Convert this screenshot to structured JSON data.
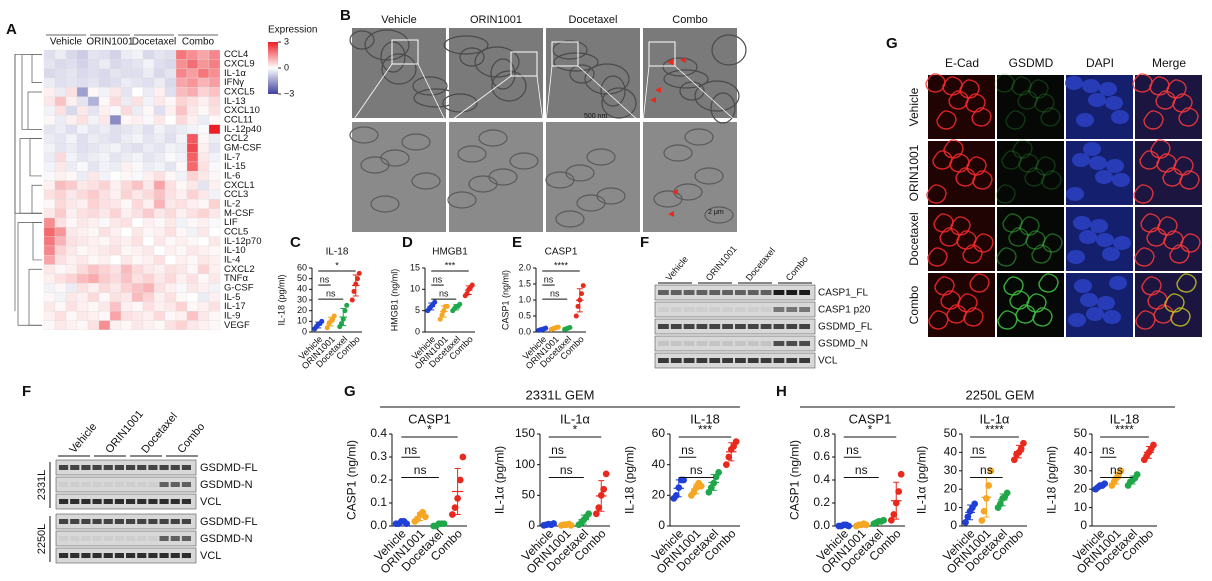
{
  "groups": [
    "Vehicle",
    "ORIN1001",
    "Docetaxel",
    "Combo"
  ],
  "group_colors": [
    "#1f3fd6",
    "#f5a623",
    "#1fa84a",
    "#e8291c"
  ],
  "A": {
    "letter": "A",
    "rows": [
      "CCL4",
      "CXCL9",
      "IL-1α",
      "IFNγ",
      "CXCL5",
      "IL-13",
      "CXCL10",
      "CCL11",
      "IL-12p40",
      "CCL2",
      "GM-CSF",
      "IL-7",
      "IL-15",
      "IL-6",
      "CXCL1",
      "CCL3",
      "IL-2",
      "M-CSF",
      "LIF",
      "CCL5",
      "IL-12p70",
      "IL-10",
      "IL-4",
      "CXCL2",
      "TNFα",
      "G-CSF",
      "IL-5",
      "IL-17",
      "IL-9",
      "VEGF"
    ],
    "values": [
      [
        -0.5,
        -0.3,
        -0.6,
        -0.8,
        -0.4,
        -0.5,
        -0.7,
        -0.3,
        -0.2,
        -0.6,
        -0.4,
        -0.5,
        1.8,
        1.5,
        1.2,
        1.6
      ],
      [
        -0.4,
        -0.6,
        -0.5,
        -0.7,
        -0.5,
        -0.3,
        -0.6,
        -0.5,
        -0.4,
        -0.2,
        -0.5,
        -0.6,
        1.5,
        1.9,
        1.4,
        1.7
      ],
      [
        -0.6,
        -0.5,
        -0.4,
        -0.6,
        -0.5,
        -0.6,
        -0.4,
        -0.5,
        -0.5,
        -0.3,
        -0.6,
        -0.4,
        1.6,
        1.3,
        1.8,
        1.5
      ],
      [
        -0.3,
        -0.5,
        -0.4,
        -0.5,
        -0.4,
        -0.6,
        -0.5,
        -0.3,
        -0.4,
        -0.5,
        -0.3,
        -0.6,
        1.2,
        1.4,
        1.0,
        1.3
      ],
      [
        0.2,
        -0.3,
        0.4,
        -1.5,
        0.1,
        -0.2,
        0.3,
        -0.4,
        0.0,
        -0.3,
        0.2,
        -0.5,
        0.9,
        1.1,
        0.6,
        0.8
      ],
      [
        0.3,
        0.8,
        0.2,
        -0.4,
        -1.2,
        0.1,
        0.5,
        -0.3,
        0.4,
        -0.2,
        0.3,
        0.1,
        0.6,
        0.4,
        0.2,
        0.5
      ],
      [
        -0.2,
        0.4,
        -0.6,
        0.3,
        -0.4,
        0.2,
        -0.1,
        0.5,
        -0.3,
        0.1,
        -0.5,
        0.2,
        0.8,
        0.3,
        0.1,
        0.4
      ],
      [
        0.1,
        -0.3,
        0.2,
        0.4,
        -0.2,
        0.3,
        -1.8,
        0.1,
        0.2,
        -0.1,
        0.3,
        0.0,
        0.5,
        0.2,
        -0.3,
        0.1
      ],
      [
        -0.4,
        -0.3,
        -0.5,
        -0.2,
        -0.4,
        -0.3,
        -0.5,
        -0.4,
        -0.3,
        -0.5,
        -0.2,
        -0.4,
        -0.3,
        -0.2,
        -0.1,
        3.0
      ],
      [
        -0.3,
        -0.4,
        -0.2,
        -0.5,
        -0.3,
        -0.4,
        -0.5,
        -0.3,
        -0.2,
        -0.4,
        -0.3,
        -0.5,
        -0.2,
        2.2,
        0.1,
        -0.3
      ],
      [
        -0.2,
        -0.4,
        -0.3,
        -0.5,
        -0.4,
        -0.3,
        -0.2,
        -0.4,
        -0.5,
        -0.3,
        -0.4,
        -0.2,
        -0.3,
        2.4,
        0.2,
        -0.4
      ],
      [
        -0.3,
        0.5,
        -0.2,
        -0.4,
        -0.3,
        -0.2,
        -0.4,
        -0.3,
        -0.2,
        -0.4,
        -0.3,
        -0.1,
        -0.2,
        2.1,
        0.3,
        -0.2
      ],
      [
        -0.2,
        0.3,
        -0.3,
        -0.1,
        -0.4,
        -0.2,
        -0.3,
        0.2,
        -0.1,
        -0.3,
        -0.2,
        -0.4,
        0.1,
        2.0,
        0.4,
        -0.1
      ],
      [
        -0.1,
        0.2,
        0.1,
        -0.3,
        0.3,
        -0.2,
        0.0,
        0.1,
        -0.1,
        0.2,
        0.4,
        0.1,
        -0.2,
        0.6,
        0.3,
        0.1
      ],
      [
        0.2,
        0.9,
        0.7,
        0.3,
        0.4,
        0.6,
        0.2,
        0.5,
        0.8,
        0.3,
        1.2,
        0.4,
        0.1,
        0.3,
        -0.4,
        0.2
      ],
      [
        0.4,
        0.6,
        0.3,
        0.5,
        0.7,
        0.4,
        0.2,
        0.6,
        0.3,
        0.5,
        0.8,
        0.4,
        0.2,
        0.6,
        0.3,
        -0.2
      ],
      [
        0.1,
        0.5,
        0.3,
        0.2,
        0.6,
        0.4,
        0.3,
        0.1,
        0.5,
        0.2,
        1.0,
        0.3,
        0.4,
        0.2,
        0.1,
        0.6
      ],
      [
        0.3,
        0.7,
        0.2,
        0.4,
        0.5,
        0.3,
        0.6,
        0.2,
        0.4,
        0.7,
        0.3,
        0.5,
        0.2,
        0.4,
        0.6,
        0.3
      ],
      [
        1.5,
        0.4,
        0.1,
        0.3,
        0.2,
        -0.1,
        0.3,
        0.4,
        0.0,
        0.2,
        0.1,
        0.3,
        -0.2,
        0.1,
        0.2,
        -0.1
      ],
      [
        2.0,
        1.4,
        0.3,
        0.2,
        0.1,
        0.4,
        0.2,
        0.0,
        0.3,
        0.1,
        0.2,
        0.4,
        0.1,
        -0.2,
        0.3,
        0.0
      ],
      [
        1.8,
        1.0,
        0.4,
        0.3,
        0.2,
        0.1,
        0.3,
        0.2,
        0.4,
        0.0,
        0.3,
        0.1,
        0.2,
        0.1,
        0.0,
        0.3
      ],
      [
        1.6,
        0.6,
        0.3,
        0.1,
        0.2,
        0.3,
        0.4,
        0.1,
        0.2,
        0.3,
        0.0,
        0.2,
        0.1,
        0.3,
        0.2,
        0.1
      ],
      [
        1.2,
        0.4,
        0.2,
        0.3,
        0.1,
        0.2,
        0.0,
        0.3,
        0.1,
        0.2,
        0.4,
        0.0,
        0.2,
        0.1,
        0.3,
        0.2
      ],
      [
        0.3,
        0.1,
        0.2,
        0.5,
        0.8,
        0.6,
        0.4,
        0.9,
        0.5,
        0.3,
        0.2,
        0.4,
        0.3,
        0.1,
        0.6,
        0.2
      ],
      [
        0.2,
        0.4,
        0.6,
        0.9,
        1.1,
        0.7,
        0.5,
        0.8,
        0.4,
        0.6,
        0.3,
        0.5,
        0.2,
        0.4,
        0.1,
        0.3
      ],
      [
        -0.2,
        0.1,
        -0.3,
        0.4,
        0.2,
        0.5,
        0.3,
        0.6,
        0.8,
        1.0,
        0.4,
        0.2,
        -0.1,
        0.3,
        0.2,
        -0.2
      ],
      [
        0.1,
        -0.2,
        0.3,
        0.2,
        0.5,
        0.1,
        0.4,
        0.3,
        0.9,
        0.6,
        0.2,
        0.4,
        0.1,
        0.0,
        -0.3,
        0.2
      ],
      [
        0.3,
        0.1,
        0.4,
        0.2,
        0.1,
        0.3,
        0.8,
        0.2,
        0.1,
        0.4,
        0.2,
        0.3,
        0.6,
        0.1,
        0.2,
        0.4
      ],
      [
        0.2,
        0.4,
        0.1,
        0.3,
        0.2,
        0.1,
        1.2,
        0.4,
        0.3,
        0.2,
        0.5,
        0.1,
        0.2,
        0.8,
        0.3,
        0.1
      ],
      [
        0.1,
        0.3,
        0.2,
        0.1,
        0.4,
        1.5,
        0.2,
        0.1,
        0.3,
        0.2,
        0.1,
        0.4,
        0.6,
        0.3,
        0.2,
        0.1
      ]
    ],
    "scale": {
      "title": "Expression",
      "lim": [
        -3,
        3
      ],
      "ticks": [
        3,
        0,
        {
          "value": -3,
          "label": "−3"
        }
      ],
      "low_color": "#3f3f9f",
      "high_color": "#ee1c25"
    }
  },
  "B": {
    "letter": "B",
    "scale_top": "500 nm",
    "scale_bottom": "2 μm"
  },
  "C": {
    "letter": "C",
    "title": "IL-18",
    "ylabel": "IL-18 (pg/ml)",
    "ylim": [
      0,
      60
    ],
    "yticks": [
      0,
      10,
      20,
      30,
      40,
      50,
      60
    ],
    "points": [
      [
        3,
        5,
        7,
        8,
        10
      ],
      [
        4,
        8,
        10,
        12,
        15
      ],
      [
        5,
        8,
        12,
        20,
        25
      ],
      [
        30,
        38,
        45,
        50,
        55
      ]
    ],
    "mean": [
      6.6,
      9.8,
      14,
      43.6
    ],
    "sd": [
      2.7,
      4,
      8,
      9.8
    ],
    "sig": [
      {
        "label": "*",
        "between": [
          0,
          3
        ]
      },
      {
        "label": "ns",
        "between": [
          0,
          1
        ]
      },
      {
        "label": "ns",
        "between": [
          0,
          2
        ]
      }
    ]
  },
  "D": {
    "letter": "D",
    "title": "HMGB1",
    "ylabel": "HMGB1 (ng/ml)",
    "ylim": [
      0,
      15
    ],
    "yticks": [
      0,
      5,
      10,
      15
    ],
    "points": [
      [
        5,
        5.5,
        6,
        6.5,
        7
      ],
      [
        3,
        4,
        5,
        6,
        6
      ],
      [
        5,
        5.5,
        6,
        6,
        6.5
      ],
      [
        8.5,
        9,
        10,
        10.5,
        11
      ]
    ],
    "mean": [
      6,
      4.8,
      5.8,
      9.8
    ],
    "sd": [
      0.8,
      1.3,
      0.6,
      1.0
    ],
    "sig": [
      {
        "label": "***",
        "between": [
          0,
          3
        ]
      },
      {
        "label": "ns",
        "between": [
          0,
          1
        ]
      },
      {
        "label": "ns",
        "between": [
          0,
          2
        ]
      }
    ]
  },
  "E": {
    "letter": "E",
    "title": "CASP1",
    "ylabel": "CASP1 (ng/ml)",
    "ylim": [
      0,
      2
    ],
    "yticks": [
      {
        "value": 0,
        "label": "0.0"
      },
      0.5,
      {
        "value": 1,
        "label": "1.0"
      },
      1.5,
      {
        "value": 2,
        "label": "2.0"
      }
    ],
    "points": [
      [
        0.05,
        0.07,
        0.08,
        0.1,
        0.12
      ],
      [
        0.08,
        0.1,
        0.12,
        0.14,
        0.15
      ],
      [
        0.08,
        0.1,
        0.12,
        0.14
      ],
      [
        0.5,
        0.8,
        1.0,
        1.2,
        1.45
      ]
    ],
    "mean": [
      0.08,
      0.12,
      0.11,
      0.99
    ],
    "sd": [
      0.03,
      0.03,
      0.03,
      0.36
    ],
    "sig": [
      {
        "label": "****",
        "between": [
          0,
          3
        ]
      },
      {
        "label": "ns",
        "between": [
          0,
          1
        ]
      },
      {
        "label": "ns",
        "between": [
          0,
          2
        ]
      }
    ]
  },
  "F_top": {
    "letter": "F",
    "bands": [
      "CASP1_FL",
      "CASP1 p20",
      "GSDMD_FL",
      "GSDMD_N",
      "VCL"
    ]
  },
  "G_top": {
    "letter": "G",
    "channels": [
      "E-Cad",
      "GSDMD",
      "DAPI",
      "Merge"
    ]
  },
  "F_bottom": {
    "letter": "F",
    "cell_lines": [
      "2331L",
      "2250L"
    ],
    "bands": [
      "GSDMD-FL",
      "GSDMD-N",
      "VCL"
    ]
  },
  "G_bottom": {
    "letter": "G",
    "title": "2331L GEM",
    "plots": [
      {
        "title": "CASP1",
        "ylabel": "CASP1 (ng/ml)",
        "ylim": [
          0,
          0.4
        ],
        "yticks": [
          {
            "value": 0,
            "label": "0.0"
          },
          0.1,
          0.2,
          0.3,
          0.4
        ],
        "points": [
          [
            0.01,
            0.01,
            0.02,
            0.02,
            0.01
          ],
          [
            0.02,
            0.03,
            0.05,
            0.06,
            0.04
          ],
          [
            0,
            0,
            0.01,
            0.01,
            0.01
          ],
          [
            0.05,
            0.08,
            0.12,
            0.2,
            0.3
          ]
        ],
        "mean": [
          0.014,
          0.04,
          0.006,
          0.15
        ],
        "sd": [
          0.005,
          0.016,
          0.005,
          0.1
        ],
        "sig": [
          {
            "label": "*",
            "between": [
              0,
              3
            ]
          },
          {
            "label": "ns",
            "between": [
              0,
              1
            ]
          },
          {
            "label": "ns",
            "between": [
              0,
              2
            ]
          }
        ]
      },
      {
        "title": "IL-1α",
        "ylabel": "IL-1α (pg/ml)",
        "ylim": [
          0,
          150
        ],
        "yticks": [
          0,
          50,
          100,
          150
        ],
        "points": [
          [
            1,
            2,
            3,
            2,
            4
          ],
          [
            1,
            2,
            2,
            3,
            1
          ],
          [
            2,
            5,
            10,
            15,
            20
          ],
          [
            20,
            30,
            50,
            60,
            85
          ]
        ],
        "mean": [
          2.4,
          1.8,
          10.4,
          49
        ],
        "sd": [
          1.1,
          0.8,
          7.3,
          25
        ],
        "sig": [
          {
            "label": "*",
            "between": [
              0,
              3
            ]
          },
          {
            "label": "ns",
            "between": [
              0,
              1
            ]
          },
          {
            "label": "ns",
            "between": [
              0,
              2
            ]
          }
        ]
      },
      {
        "title": "IL-18",
        "ylabel": "IL-18 (pg/ml)",
        "ylim": [
          0,
          60
        ],
        "yticks": [
          0,
          20,
          40,
          60
        ],
        "points": [
          [
            18,
            20,
            25,
            30,
            30
          ],
          [
            20,
            22,
            25,
            28,
            26
          ],
          [
            22,
            25,
            28,
            32,
            35
          ],
          [
            40,
            45,
            50,
            52,
            55
          ]
        ],
        "mean": [
          24.6,
          24.2,
          28.4,
          48.4
        ],
        "sd": [
          5.5,
          3.2,
          5.2,
          5.9
        ],
        "sig": [
          {
            "label": "***",
            "between": [
              0,
              3
            ]
          },
          {
            "label": "ns",
            "between": [
              0,
              1
            ]
          },
          {
            "label": "ns",
            "between": [
              0,
              2
            ]
          }
        ]
      }
    ]
  },
  "H": {
    "letter": "H",
    "title": "2250L GEM",
    "plots": [
      {
        "title": "CASP1",
        "ylabel": "CASP1 (ng/ml)",
        "ylim": [
          0,
          0.8
        ],
        "yticks": [
          {
            "value": 0,
            "label": "0.0"
          },
          0.2,
          0.4,
          0.6,
          0.8
        ],
        "points": [
          [
            0,
            0,
            0.01,
            0.01,
            0
          ],
          [
            0,
            0.01,
            0.01,
            0.02,
            0.01
          ],
          [
            0.02,
            0.03,
            0.04,
            0.04,
            0.05
          ],
          [
            0.05,
            0.1,
            0.2,
            0.3,
            0.45
          ]
        ],
        "mean": [
          0.004,
          0.01,
          0.036,
          0.22
        ],
        "sd": [
          0.005,
          0.007,
          0.011,
          0.16
        ],
        "sig": [
          {
            "label": "*",
            "between": [
              0,
              3
            ]
          },
          {
            "label": "ns",
            "between": [
              0,
              1
            ]
          },
          {
            "label": "ns",
            "between": [
              0,
              2
            ]
          }
        ]
      },
      {
        "title": "IL-1α",
        "ylabel": "IL-1α (pg/ml)",
        "ylim": [
          0,
          50
        ],
        "yticks": [
          0,
          10,
          20,
          30,
          40,
          50
        ],
        "points": [
          [
            2,
            5,
            8,
            10,
            12
          ],
          [
            3,
            8,
            15,
            22,
            30
          ],
          [
            10,
            12,
            15,
            16,
            18
          ],
          [
            36,
            39,
            40,
            42,
            45
          ]
        ],
        "mean": [
          7.4,
          15.6,
          14.2,
          40.4
        ],
        "sd": [
          4,
          10.7,
          3.2,
          3.4
        ],
        "sig": [
          {
            "label": "****",
            "between": [
              0,
              3
            ]
          },
          {
            "label": "ns",
            "between": [
              0,
              1
            ]
          },
          {
            "label": "ns",
            "between": [
              0,
              2
            ]
          }
        ]
      },
      {
        "title": "IL-18",
        "ylabel": "IL-18 (pg/ml)",
        "ylim": [
          0,
          50
        ],
        "yticks": [
          0,
          10,
          20,
          30,
          40,
          50
        ],
        "points": [
          [
            20,
            21,
            22,
            22,
            23
          ],
          [
            22,
            24,
            26,
            28,
            30
          ],
          [
            22,
            24,
            25,
            26,
            28
          ],
          [
            36,
            38,
            40,
            42,
            44
          ]
        ],
        "mean": [
          21.6,
          26,
          25,
          40
        ],
        "sd": [
          1.1,
          3.2,
          2.2,
          3.2
        ],
        "sig": [
          {
            "label": "****",
            "between": [
              0,
              3
            ]
          },
          {
            "label": "ns",
            "between": [
              0,
              1
            ]
          },
          {
            "label": "ns",
            "between": [
              0,
              2
            ]
          }
        ]
      }
    ]
  }
}
